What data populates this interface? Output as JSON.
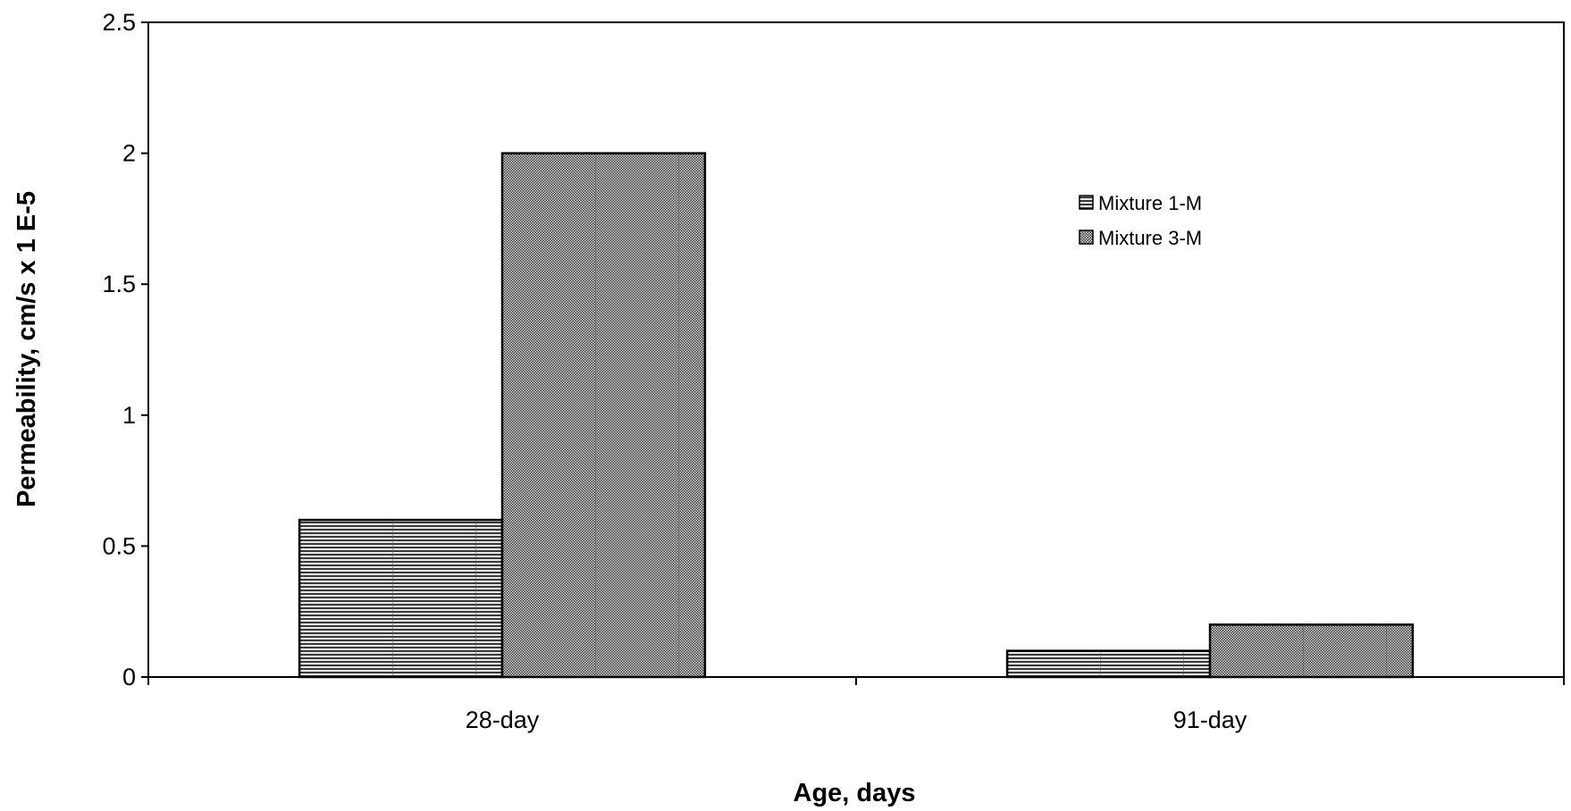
{
  "chart_data": {
    "type": "bar",
    "title": "",
    "xlabel": "Age, days",
    "ylabel": "Permeability, cm/s x 1 E-5",
    "categories": [
      "28-day",
      "91-day"
    ],
    "series": [
      {
        "name": "Mixture 1-M",
        "values": [
          0.6,
          0.1
        ]
      },
      {
        "name": "Mixture 3-M",
        "values": [
          2.0,
          0.2
        ]
      }
    ],
    "ylim": [
      0,
      2.5
    ],
    "yticks": [
      0,
      0.5,
      1,
      1.5,
      2,
      2.5
    ],
    "ytick_labels": [
      "0",
      "0.5",
      "1",
      "1.5",
      "2",
      "2.5"
    ],
    "grid": false,
    "legend_position": "top-right",
    "colors": {
      "bar_fill": "#9a9a9a",
      "outline": "#000000"
    }
  }
}
